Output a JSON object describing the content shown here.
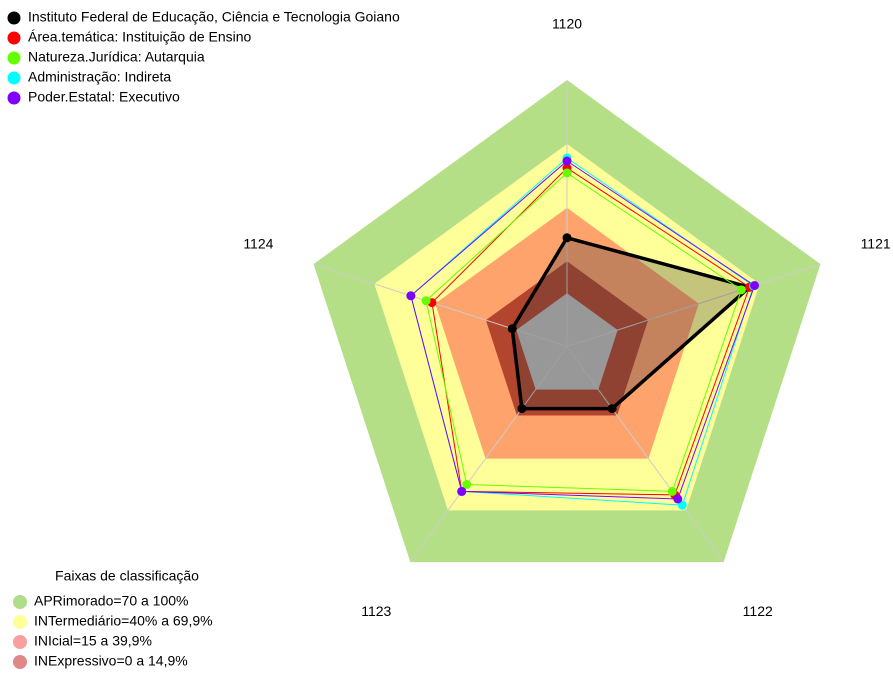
{
  "chart_data": {
    "type": "radar",
    "categories": [
      "1120",
      "1121",
      "1122",
      "1123",
      "1124"
    ],
    "ylim": [
      -25,
      100
    ],
    "center_color": "#c0c0c0",
    "series": [
      {
        "name": "Instituto Federal de Educação, Ciência e Tecnologia Goiano",
        "color": "#000000",
        "values": [
          26,
          65,
          11,
          11,
          2
        ]
      },
      {
        "name": "Área.temática: Instituição de Ensino",
        "color": "#ff0000",
        "values": [
          58.7,
          65,
          61,
          59,
          41.6
        ]
      },
      {
        "name": "Natureza.Jurídica: Autarquia",
        "color": "#66ff00",
        "values": [
          56.4,
          61,
          59,
          55,
          44.5
        ]
      },
      {
        "name": "Administração: Indireta",
        "color": "#00ffff",
        "values": [
          63.4,
          67,
          67,
          59,
          52
        ]
      },
      {
        "name": "Poder.Estatal: Executivo",
        "color": "#8000ff",
        "values": [
          62,
          67.5,
          63.4,
          59,
          52
        ]
      }
    ],
    "bands_title": "Faixas de classificação",
    "bands": [
      {
        "label": "APRimorado=70 a 100%",
        "from": 70,
        "to": 100,
        "color": "#b5df86",
        "legend_color": "#b0dc8c"
      },
      {
        "label": "INTermediário=40% a 69,9%",
        "from": 40,
        "to": 70,
        "color": "#ffff9a",
        "legend_color": "#ffff99"
      },
      {
        "label": "INIcial=15 a 39,9%",
        "from": 15,
        "to": 40,
        "color": "#ffa36c",
        "legend_color": "#f8a0a0"
      },
      {
        "label": "INExpressivo=0 a 14,9%",
        "from": 0,
        "to": 15,
        "color": "#b3452e",
        "legend_color": "#e08888"
      }
    ]
  }
}
